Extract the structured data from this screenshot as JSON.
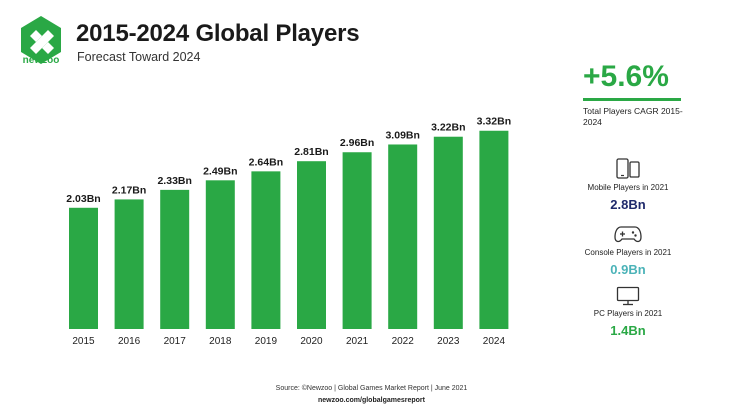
{
  "header": {
    "logo_text": "newzoo",
    "title": "2015-2024 Global Players",
    "subtitle": "Forecast Toward 2024"
  },
  "colors": {
    "accent": "#2aa845",
    "mobile_value": "#1f2a6b",
    "console_value": "#4bb3b8",
    "pc_value": "#2aa845"
  },
  "chart_data": {
    "type": "bar",
    "categories": [
      "2015",
      "2016",
      "2017",
      "2018",
      "2019",
      "2020",
      "2021",
      "2022",
      "2023",
      "2024"
    ],
    "values": [
      2.03,
      2.17,
      2.33,
      2.49,
      2.64,
      2.81,
      2.96,
      3.09,
      3.22,
      3.32
    ],
    "data_labels": [
      "2.03Bn",
      "2.17Bn",
      "2.33Bn",
      "2.49Bn",
      "2.64Bn",
      "2.81Bn",
      "2.96Bn",
      "3.09Bn",
      "3.22Bn",
      "3.32Bn"
    ],
    "title": "2015-2024 Global Players",
    "xlabel": "",
    "ylabel": "",
    "ylim": [
      0,
      3.5
    ],
    "grid": false,
    "bar_color": "#2aa845"
  },
  "sidebar": {
    "cagr_value": "+5.6%",
    "cagr_label": "Total Players CAGR 2015-2024",
    "mobile": {
      "icon": "mobile-devices-icon",
      "label": "Mobile Players in 2021",
      "value": "2.8Bn"
    },
    "console": {
      "icon": "gamepad-icon",
      "label": "Console Players in 2021",
      "value": "0.9Bn"
    },
    "pc": {
      "icon": "monitor-icon",
      "label": "PC Players in 2021",
      "value": "1.4Bn"
    }
  },
  "footer": {
    "source": "Source: ©Newzoo | Global Games Market Report | June 2021",
    "url": "newzoo.com/globalgamesreport"
  }
}
